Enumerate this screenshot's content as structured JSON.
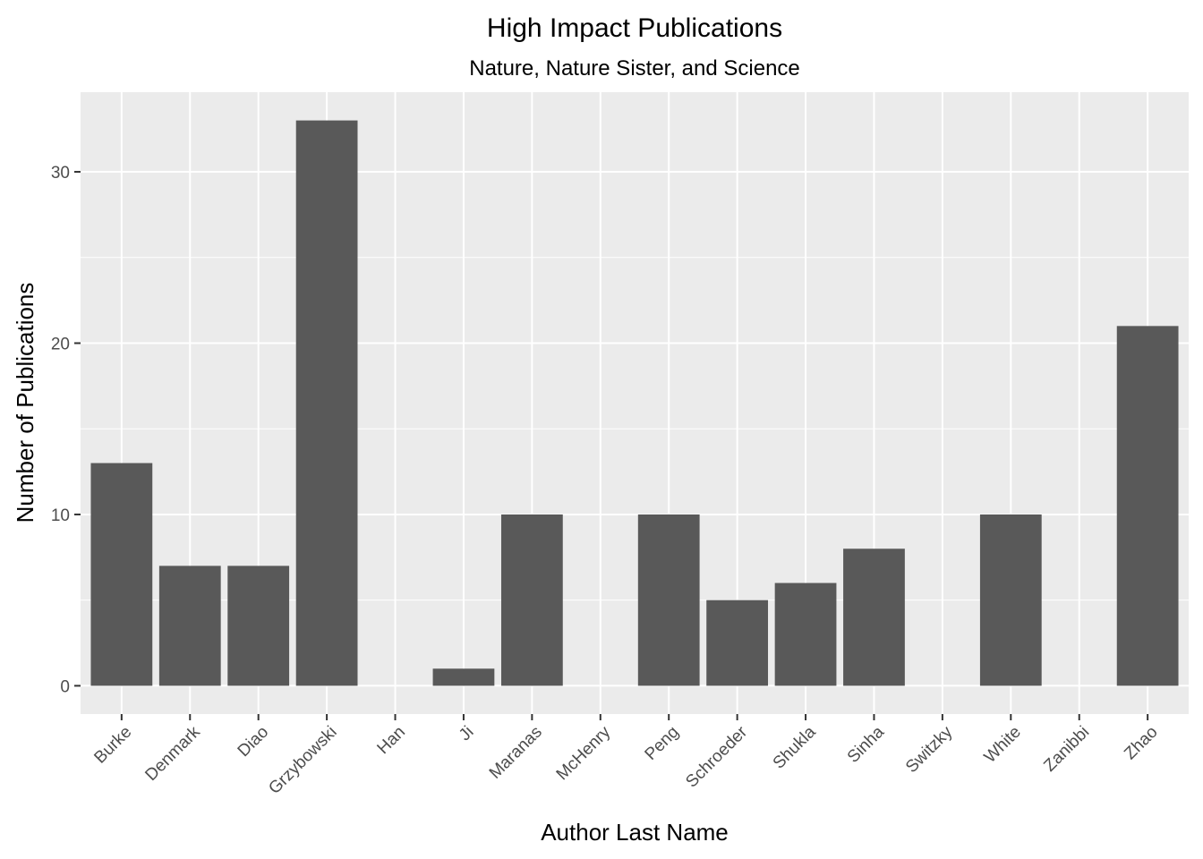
{
  "chart_data": {
    "type": "bar",
    "title": "High Impact Publications",
    "subtitle": "Nature, Nature Sister, and Science",
    "xlabel": "Author Last Name",
    "ylabel": "Number of Publications",
    "categories": [
      "Burke",
      "Denmark",
      "Diao",
      "Grzybowski",
      "Han",
      "Ji",
      "Maranas",
      "McHenry",
      "Peng",
      "Schroeder",
      "Shukla",
      "Sinha",
      "Switzky",
      "White",
      "Zanibbi",
      "Zhao"
    ],
    "values": [
      13,
      7,
      7,
      33,
      0,
      1,
      10,
      0,
      10,
      5,
      6,
      8,
      0,
      10,
      0,
      21
    ],
    "yticks": [
      0,
      10,
      20,
      30
    ],
    "ylim": [
      -1.65,
      34.65
    ],
    "grid": true,
    "legend": "none",
    "colors": {
      "panel_background": "#ebebeb",
      "gridline": "#ffffff",
      "bar": "#595959"
    }
  }
}
